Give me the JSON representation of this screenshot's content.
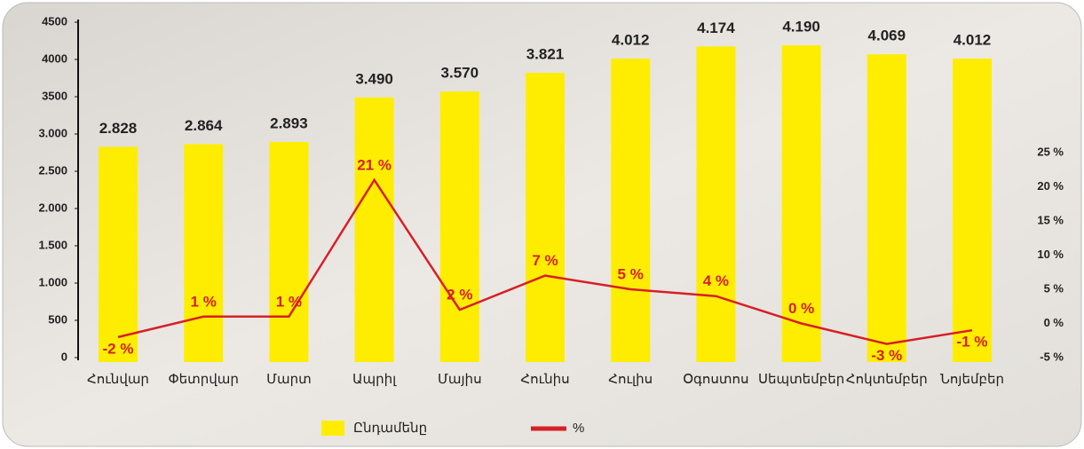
{
  "chart_data": {
    "type": "bar-line",
    "categories": [
      "Հունվար",
      "Փետրվար",
      "Մարտ",
      "Ապրիլ",
      "Մայիս",
      "Հունիս",
      "Հուլիս",
      "Օգոստոս",
      "Սեպտեմբեր",
      "Հոկտեմբեր",
      "Նոյեմբեր"
    ],
    "series": [
      {
        "name": "Ընդամենը",
        "type": "bar",
        "color": "#ffed00",
        "values": [
          2828,
          2864,
          2893,
          3490,
          3570,
          3821,
          4012,
          4174,
          4190,
          4069,
          4012
        ],
        "value_labels": [
          "2.828",
          "2.864",
          "2.893",
          "3.490",
          "3.570",
          "3.821",
          "4.012",
          "4.174",
          "4.190",
          "4.069",
          "4.012"
        ]
      },
      {
        "name": "%",
        "type": "line",
        "axis": "y2",
        "color": "#d71f26",
        "values": [
          -2,
          1,
          1,
          21,
          2,
          7,
          5,
          4,
          0,
          -3,
          -1
        ],
        "value_labels": [
          "-2 %",
          "1 %",
          "1 %",
          "21 %",
          "2 %",
          "7 %",
          "5 %",
          "4 %",
          "0 %",
          "-3 %",
          "-1 %"
        ]
      }
    ],
    "ylim": [
      0,
      4500
    ],
    "yticks": [
      0,
      500,
      {
        "value": 1000,
        "label": "1.000"
      },
      {
        "value": 1500,
        "label": "1.500"
      },
      {
        "value": 2000,
        "label": "2.000"
      },
      {
        "value": 2500,
        "label": "2.500"
      },
      {
        "value": 3000,
        "label": "3.000"
      },
      3500,
      4000,
      4500
    ],
    "y2lim": [
      -5,
      25
    ],
    "y2ticks": [
      {
        "value": -5,
        "label": "-5 %"
      },
      {
        "value": 0,
        "label": "0 %"
      },
      {
        "value": 5,
        "label": "5 %"
      },
      {
        "value": 10,
        "label": "10 %"
      },
      {
        "value": 15,
        "label": "15 %"
      },
      {
        "value": 20,
        "label": "20 %"
      },
      {
        "value": 25,
        "label": "25 %"
      }
    ],
    "legend": "bottom"
  }
}
